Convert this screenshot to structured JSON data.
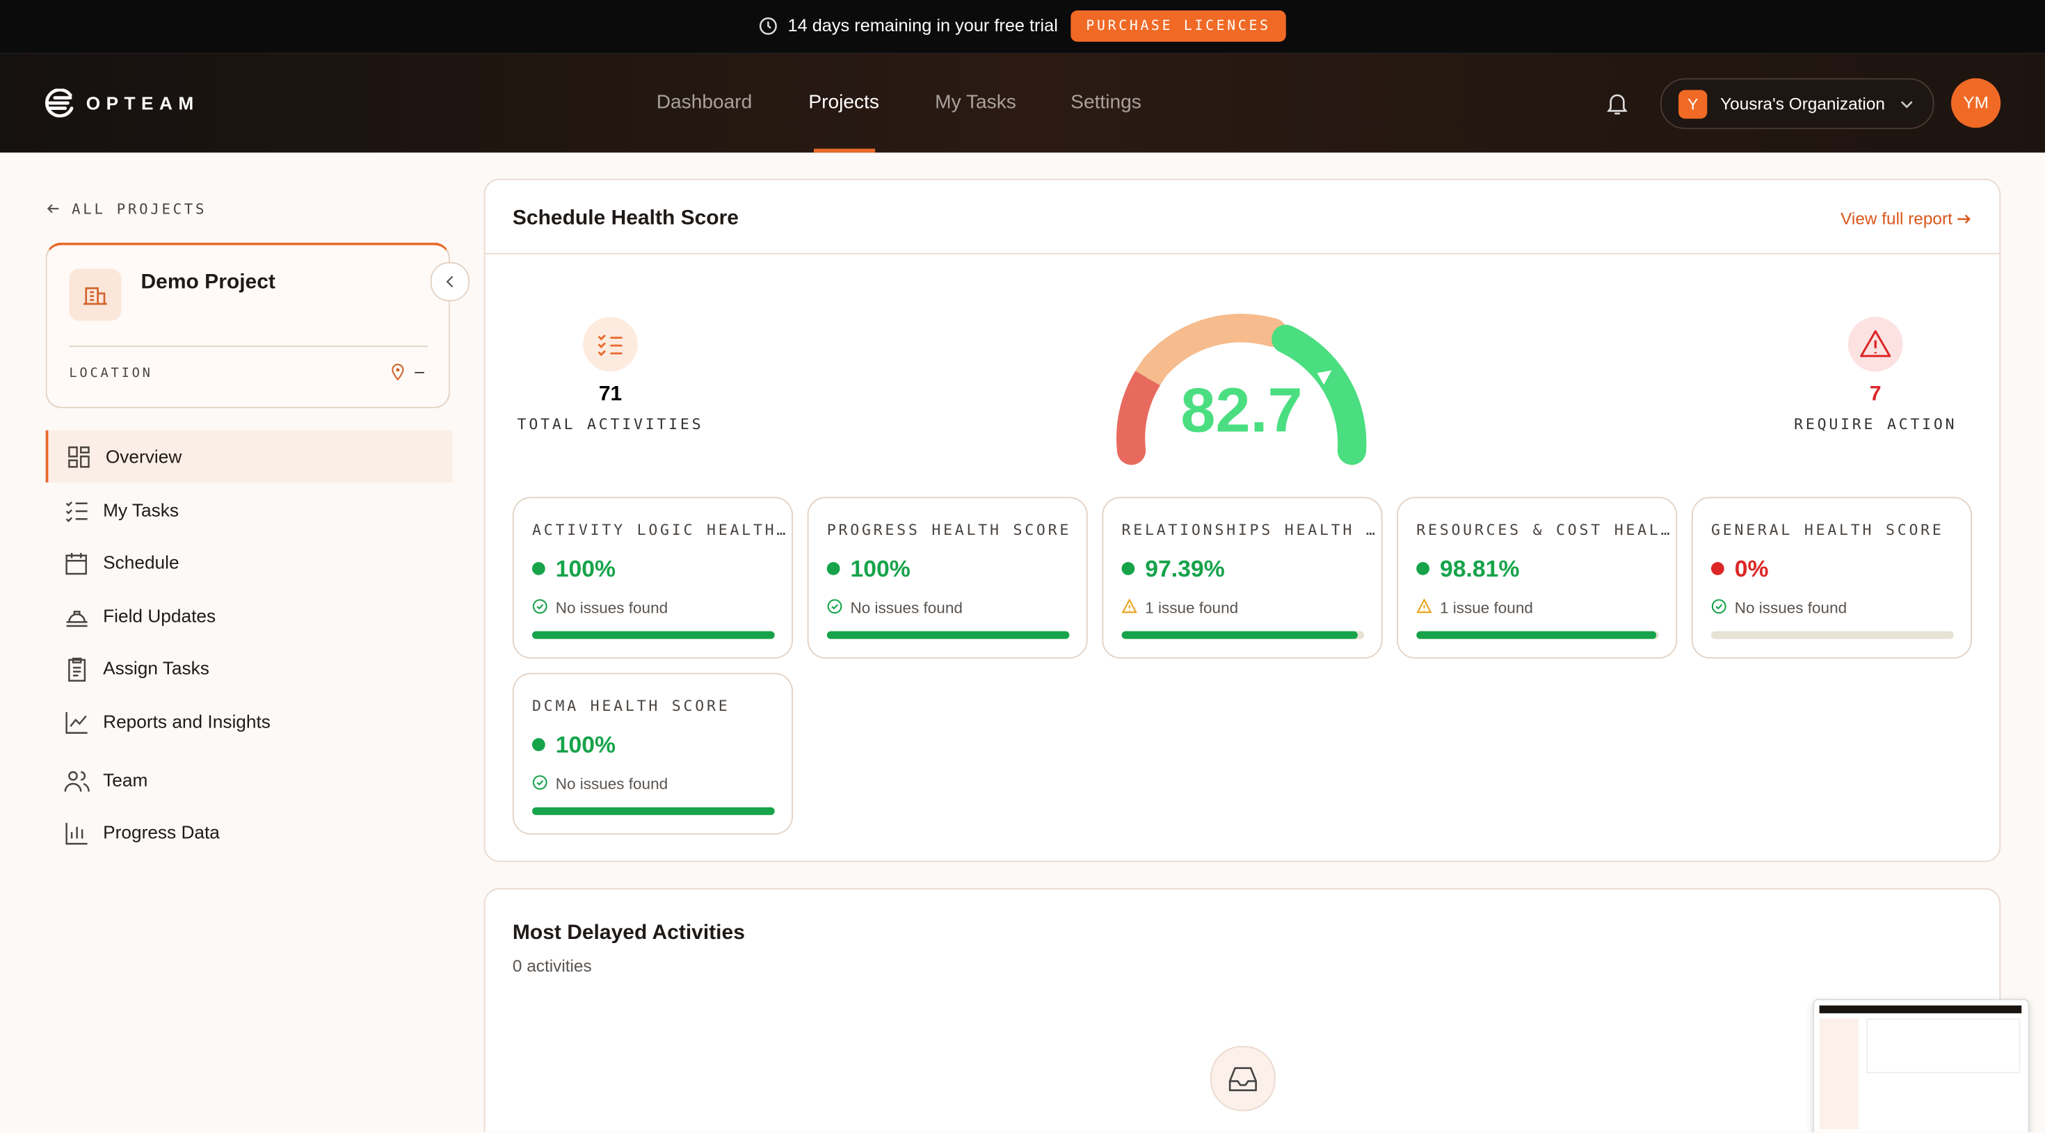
{
  "banner": {
    "text": "14 days remaining in your free trial",
    "button": "PURCHASE LICENCES"
  },
  "nav": {
    "logo": "OPTEAM",
    "items": [
      "Dashboard",
      "Projects",
      "My Tasks",
      "Settings"
    ]
  },
  "org": {
    "initial": "Y",
    "name": "Yousra's Organization"
  },
  "user": {
    "initials": "YM"
  },
  "sidebar": {
    "back": "ALL PROJECTS",
    "project": "Demo Project",
    "location_label": "LOCATION",
    "location_value": "–",
    "menu": [
      "Overview",
      "My Tasks",
      "Schedule",
      "Field Updates",
      "Assign Tasks",
      "Reports and Insights",
      "Team",
      "Progress Data"
    ]
  },
  "health": {
    "title": "Schedule Health Score",
    "link": "View full report",
    "total": 71,
    "total_label": "TOTAL ACTIVITIES",
    "score": 82.7,
    "action": 7,
    "action_label": "REQUIRE ACTION",
    "cards": [
      {
        "title": "ACTIVITY LOGIC HEALTH…",
        "value": 100,
        "value_label": "100%",
        "status": "No issues found",
        "status_icon": "check",
        "color": "#16a34a"
      },
      {
        "title": "PROGRESS HEALTH SCORE",
        "value": 100,
        "value_label": "100%",
        "status": "No issues found",
        "status_icon": "check",
        "color": "#16a34a"
      },
      {
        "title": "RELATIONSHIPS HEALTH …",
        "value": 97.39,
        "value_label": "97.39%",
        "status": "1 issue found",
        "status_icon": "warning",
        "color": "#16a34a"
      },
      {
        "title": "RESOURCES & COST HEAL…",
        "value": 98.81,
        "value_label": "98.81%",
        "status": "1 issue found",
        "status_icon": "warning",
        "color": "#16a34a"
      },
      {
        "title": "GENERAL HEALTH SCORE",
        "value": 0,
        "value_label": "0%",
        "status": "No issues found",
        "status_icon": "check",
        "color": "#dc2626"
      },
      {
        "title": "DCMA HEALTH SCORE",
        "value": 100,
        "value_label": "100%",
        "status": "No issues found",
        "status_icon": "check",
        "color": "#16a34a"
      }
    ]
  },
  "delayed": {
    "title": "Most Delayed Activities",
    "subtitle": "0 activities"
  }
}
